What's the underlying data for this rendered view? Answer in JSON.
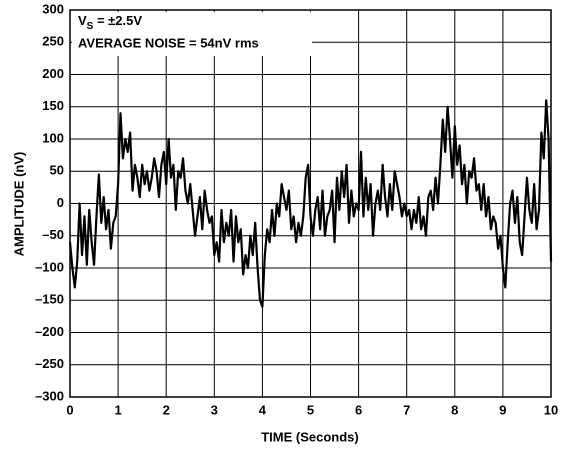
{
  "chart_data": {
    "type": "line",
    "xlabel": "TIME (Seconds)",
    "ylabel": "AMPLITUDE (nV)",
    "annotations": [
      {
        "text": "V",
        "subscript": "S",
        "rest": " = ±2.5V"
      },
      {
        "text": "AVERAGE NOISE = 54nV rms"
      }
    ],
    "xlim": [
      0,
      10
    ],
    "xticks": [
      0,
      1,
      2,
      3,
      4,
      5,
      6,
      7,
      8,
      9,
      10
    ],
    "ylim": [
      -300,
      300
    ],
    "yticks": [
      {
        "value": -300,
        "label": "–300"
      },
      {
        "value": -250,
        "label": "–250"
      },
      {
        "value": -200,
        "label": "–200"
      },
      {
        "value": -150,
        "label": "–150"
      },
      {
        "value": -100,
        "label": "–100"
      },
      {
        "value": -50,
        "label": "–50"
      },
      0,
      50,
      100,
      150,
      200,
      250,
      300
    ],
    "grid": true,
    "x": [
      0,
      0.05,
      0.1,
      0.15,
      0.2,
      0.25,
      0.3,
      0.35,
      0.4,
      0.45,
      0.5,
      0.55,
      0.6,
      0.65,
      0.7,
      0.75,
      0.8,
      0.85,
      0.9,
      0.95,
      1,
      1.05,
      1.1,
      1.15,
      1.2,
      1.25,
      1.3,
      1.35,
      1.4,
      1.45,
      1.5,
      1.55,
      1.6,
      1.65,
      1.7,
      1.75,
      1.8,
      1.85,
      1.9,
      1.95,
      2,
      2.05,
      2.1,
      2.15,
      2.2,
      2.25,
      2.3,
      2.35,
      2.4,
      2.45,
      2.5,
      2.55,
      2.6,
      2.65,
      2.7,
      2.75,
      2.8,
      2.85,
      2.9,
      2.95,
      3,
      3.05,
      3.1,
      3.15,
      3.2,
      3.25,
      3.3,
      3.35,
      3.4,
      3.45,
      3.5,
      3.55,
      3.6,
      3.65,
      3.7,
      3.75,
      3.8,
      3.85,
      3.9,
      3.95,
      4,
      4.05,
      4.1,
      4.15,
      4.2,
      4.25,
      4.3,
      4.35,
      4.4,
      4.45,
      4.5,
      4.55,
      4.6,
      4.65,
      4.7,
      4.75,
      4.8,
      4.85,
      4.9,
      4.95,
      5,
      5.05,
      5.1,
      5.15,
      5.2,
      5.25,
      5.3,
      5.35,
      5.4,
      5.45,
      5.5,
      5.55,
      5.6,
      5.65,
      5.7,
      5.75,
      5.8,
      5.85,
      5.9,
      5.95,
      6,
      6.05,
      6.1,
      6.15,
      6.2,
      6.25,
      6.3,
      6.35,
      6.4,
      6.45,
      6.5,
      6.55,
      6.6,
      6.65,
      6.7,
      6.75,
      6.8,
      6.85,
      6.9,
      6.95,
      7,
      7.05,
      7.1,
      7.15,
      7.2,
      7.25,
      7.3,
      7.35,
      7.4,
      7.45,
      7.5,
      7.55,
      7.6,
      7.65,
      7.7,
      7.75,
      7.8,
      7.85,
      7.9,
      7.95,
      8,
      8.05,
      8.1,
      8.15,
      8.2,
      8.25,
      8.3,
      8.35,
      8.4,
      8.45,
      8.5,
      8.55,
      8.6,
      8.65,
      8.7,
      8.75,
      8.8,
      8.85,
      8.9,
      8.95,
      9,
      9.05,
      9.1,
      9.15,
      9.2,
      9.25,
      9.3,
      9.35,
      9.4,
      9.45,
      9.5,
      9.55,
      9.6,
      9.65,
      9.7,
      9.75,
      9.8,
      9.85,
      9.9,
      9.95,
      10
    ],
    "series": [
      {
        "color": "#000000",
        "values": [
          -60,
          -100,
          -130,
          -90,
          0,
          -80,
          -20,
          -95,
          -10,
          -60,
          -95,
          -20,
          45,
          -30,
          10,
          -40,
          -10,
          -70,
          -30,
          -20,
          30,
          140,
          70,
          100,
          80,
          110,
          20,
          60,
          40,
          10,
          60,
          30,
          50,
          20,
          40,
          70,
          50,
          10,
          60,
          80,
          30,
          100,
          40,
          60,
          -10,
          50,
          40,
          70,
          20,
          0,
          30,
          -10,
          -50,
          -20,
          10,
          -40,
          20,
          -10,
          -30,
          -20,
          -80,
          -60,
          -90,
          -10,
          -60,
          -30,
          -50,
          -10,
          -90,
          -20,
          -60,
          -40,
          -110,
          -80,
          -100,
          -50,
          -80,
          -30,
          -100,
          -150,
          -160,
          -80,
          -40,
          -60,
          -10,
          -50,
          0,
          -20,
          30,
          10,
          -10,
          20,
          -40,
          -20,
          -60,
          -30,
          -50,
          -20,
          40,
          60,
          -20,
          -50,
          -10,
          10,
          -40,
          20,
          -50,
          -20,
          -10,
          20,
          -60,
          40,
          -10,
          50,
          10,
          60,
          -30,
          20,
          -20,
          0,
          -10,
          80,
          -20,
          40,
          -10,
          30,
          -50,
          0,
          20,
          -10,
          60,
          10,
          -20,
          30,
          -10,
          50,
          30,
          10,
          -20,
          0,
          -20,
          -10,
          -40,
          -10,
          -30,
          10,
          -40,
          -20,
          -50,
          10,
          20,
          -10,
          40,
          0,
          60,
          130,
          80,
          150,
          100,
          40,
          120,
          60,
          90,
          30,
          60,
          0,
          50,
          40,
          70,
          20,
          30,
          -10,
          30,
          -20,
          10,
          -40,
          -20,
          -30,
          -70,
          -50,
          -100,
          -130,
          -60,
          0,
          20,
          -30,
          10,
          -60,
          -80,
          -20,
          40,
          -10,
          -30,
          30,
          -40,
          -10,
          110,
          70,
          160,
          100,
          -90
        ]
      }
    ]
  }
}
